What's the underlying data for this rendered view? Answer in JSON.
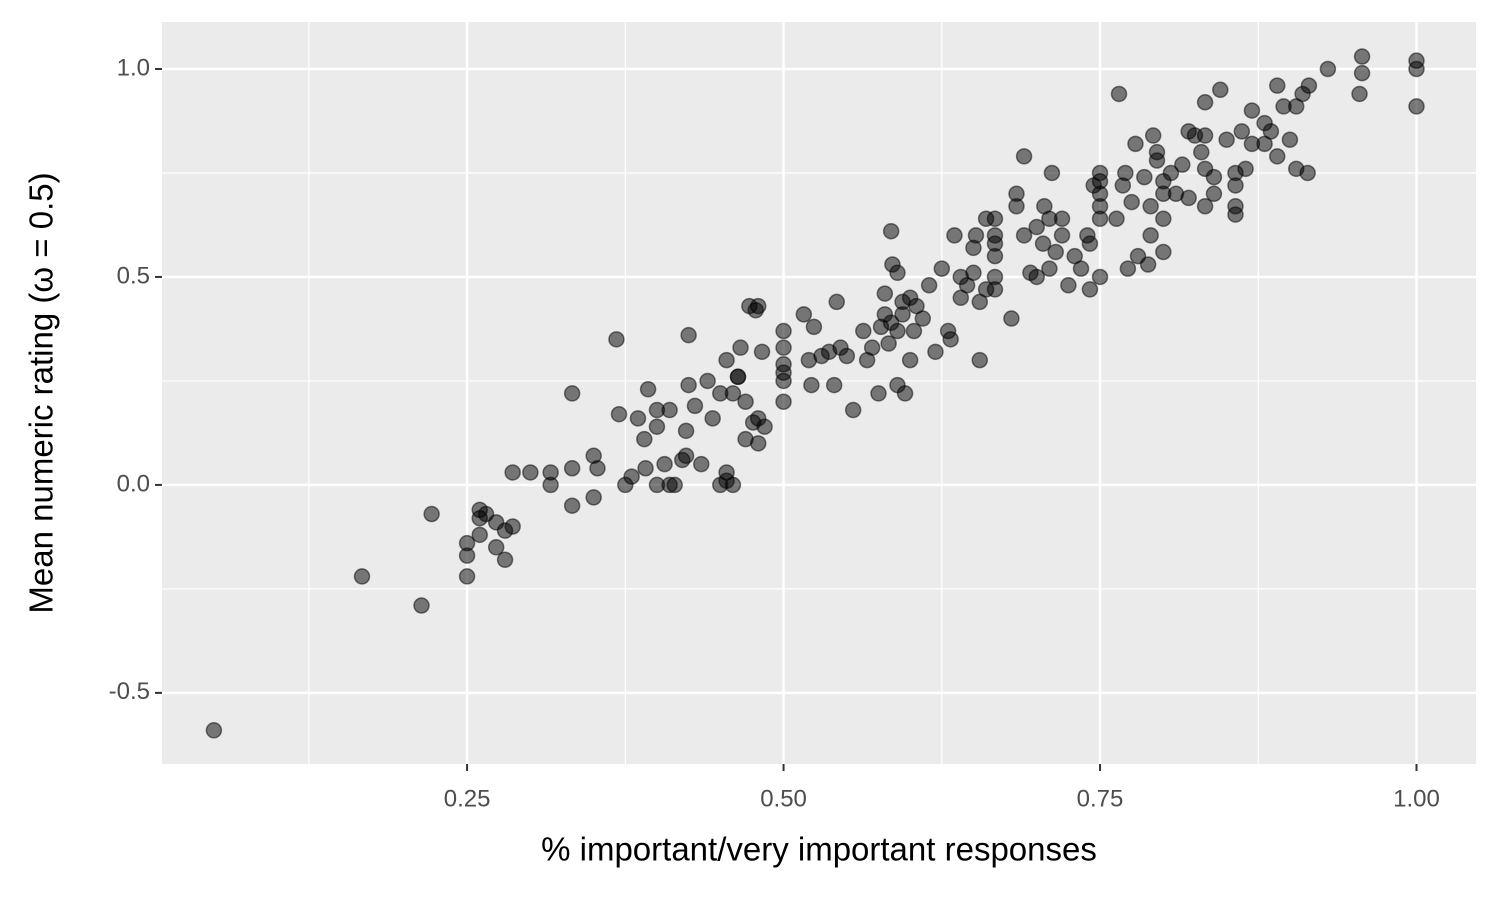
{
  "chart_data": {
    "type": "scatter",
    "x_label": "% important/very important responses",
    "y_label": "Mean numeric rating (ω = 0.5)",
    "color": "#000000",
    "opacity": 0.5,
    "grid": true,
    "xlim": [
      0.009,
      1.047
    ],
    "ylim": [
      -0.671,
      1.113
    ],
    "xticks": [
      0.25,
      {
        "value": 0.5,
        "label": "0.50"
      },
      0.75,
      {
        "value": 1,
        "label": "1.00"
      }
    ],
    "yticks": [
      {
        "value": -0.5,
        "label": "-0.5"
      },
      {
        "value": 0,
        "label": "0.0"
      },
      0.5,
      {
        "value": 1,
        "label": "1.0"
      }
    ],
    "x_minor_grid": [
      0.125,
      0.375,
      0.625,
      0.875
    ],
    "y_minor_grid": [
      -0.25,
      0.25,
      0.75
    ],
    "x": [
      0.05,
      0.167,
      0.214,
      0.222,
      0.25,
      0.25,
      0.25,
      0.26,
      0.26,
      0.26,
      0.265,
      0.273,
      0.273,
      0.28,
      0.28,
      0.286,
      0.286,
      0.3,
      0.316,
      0.316,
      0.333,
      0.333,
      0.333,
      0.35,
      0.35,
      0.353,
      0.368,
      0.37,
      0.375,
      0.38,
      0.385,
      0.39,
      0.391,
      0.393,
      0.4,
      0.4,
      0.4,
      0.406,
      0.41,
      0.41,
      0.414,
      0.42,
      0.423,
      0.423,
      0.425,
      0.425,
      0.43,
      0.435,
      0.44,
      0.444,
      0.45,
      0.45,
      0.455,
      0.455,
      0.455,
      0.46,
      0.46,
      0.464,
      0.464,
      0.466,
      0.47,
      0.47,
      0.473,
      0.476,
      0.478,
      0.48,
      0.48,
      0.48,
      0.483,
      0.485,
      0.5,
      0.5,
      0.5,
      0.5,
      0.5,
      0.5,
      0.516,
      0.52,
      0.522,
      0.524,
      0.53,
      0.536,
      0.54,
      0.542,
      0.545,
      0.55,
      0.555,
      0.563,
      0.566,
      0.57,
      0.575,
      0.577,
      0.58,
      0.58,
      0.583,
      0.585,
      0.585,
      0.586,
      0.59,
      0.59,
      0.59,
      0.594,
      0.594,
      0.596,
      0.6,
      0.6,
      0.603,
      0.605,
      0.61,
      0.615,
      0.62,
      0.625,
      0.63,
      0.632,
      0.635,
      0.64,
      0.64,
      0.645,
      0.65,
      0.65,
      0.652,
      0.655,
      0.655,
      0.66,
      0.66,
      0.667,
      0.667,
      0.667,
      0.667,
      0.667,
      0.667,
      0.68,
      0.684,
      0.684,
      0.69,
      0.69,
      0.695,
      0.7,
      0.7,
      0.705,
      0.706,
      0.71,
      0.71,
      0.712,
      0.715,
      0.72,
      0.72,
      0.725,
      0.73,
      0.735,
      0.74,
      0.742,
      0.742,
      0.745,
      0.75,
      0.75,
      0.75,
      0.75,
      0.75,
      0.75,
      0.763,
      0.765,
      0.768,
      0.77,
      0.772,
      0.775,
      0.778,
      0.78,
      0.785,
      0.788,
      0.79,
      0.79,
      0.792,
      0.795,
      0.795,
      0.8,
      0.8,
      0.8,
      0.8,
      0.806,
      0.81,
      0.815,
      0.82,
      0.82,
      0.825,
      0.83,
      0.833,
      0.833,
      0.833,
      0.833,
      0.84,
      0.84,
      0.845,
      0.85,
      0.857,
      0.857,
      0.857,
      0.857,
      0.862,
      0.865,
      0.87,
      0.87,
      0.88,
      0.88,
      0.885,
      0.89,
      0.89,
      0.895,
      0.9,
      0.905,
      0.905,
      0.91,
      0.914,
      0.915,
      0.93,
      0.955,
      0.957,
      0.957,
      1.0,
      1.0,
      1.0
    ],
    "values": [
      -0.59,
      -0.22,
      -0.29,
      -0.07,
      -0.14,
      -0.17,
      -0.22,
      -0.06,
      -0.08,
      -0.12,
      -0.07,
      -0.09,
      -0.15,
      -0.18,
      -0.11,
      -0.1,
      0.03,
      0.03,
      0.0,
      0.03,
      0.04,
      -0.05,
      0.22,
      0.07,
      -0.03,
      0.04,
      0.35,
      0.17,
      0.0,
      0.02,
      0.16,
      0.11,
      0.04,
      0.23,
      0.14,
      0.18,
      0.0,
      0.05,
      0.18,
      0.0,
      0.0,
      0.06,
      0.07,
      0.13,
      0.24,
      0.36,
      0.19,
      0.05,
      0.25,
      0.16,
      0.0,
      0.22,
      0.03,
      0.3,
      0.01,
      0.0,
      0.22,
      0.26,
      0.26,
      0.33,
      0.2,
      0.11,
      0.43,
      0.15,
      0.42,
      0.43,
      0.1,
      0.16,
      0.32,
      0.14,
      0.2,
      0.25,
      0.27,
      0.29,
      0.33,
      0.37,
      0.41,
      0.3,
      0.24,
      0.38,
      0.31,
      0.32,
      0.24,
      0.44,
      0.33,
      0.31,
      0.18,
      0.37,
      0.3,
      0.33,
      0.22,
      0.38,
      0.41,
      0.46,
      0.34,
      0.39,
      0.61,
      0.53,
      0.24,
      0.51,
      0.37,
      0.44,
      0.41,
      0.22,
      0.3,
      0.45,
      0.37,
      0.43,
      0.4,
      0.48,
      0.32,
      0.52,
      0.37,
      0.35,
      0.6,
      0.45,
      0.5,
      0.48,
      0.57,
      0.51,
      0.6,
      0.3,
      0.44,
      0.64,
      0.47,
      0.47,
      0.55,
      0.58,
      0.6,
      0.64,
      0.5,
      0.4,
      0.67,
      0.7,
      0.6,
      0.79,
      0.51,
      0.5,
      0.62,
      0.58,
      0.67,
      0.64,
      0.52,
      0.75,
      0.56,
      0.6,
      0.64,
      0.48,
      0.55,
      0.52,
      0.6,
      0.58,
      0.47,
      0.72,
      0.5,
      0.64,
      0.67,
      0.7,
      0.73,
      0.75,
      0.64,
      0.94,
      0.72,
      0.75,
      0.52,
      0.68,
      0.82,
      0.55,
      0.74,
      0.53,
      0.67,
      0.6,
      0.84,
      0.8,
      0.78,
      0.7,
      0.56,
      0.64,
      0.73,
      0.75,
      0.7,
      0.77,
      0.69,
      0.85,
      0.84,
      0.8,
      0.67,
      0.76,
      0.84,
      0.92,
      0.7,
      0.74,
      0.95,
      0.83,
      0.65,
      0.67,
      0.72,
      0.75,
      0.85,
      0.76,
      0.82,
      0.9,
      0.82,
      0.87,
      0.85,
      0.79,
      0.96,
      0.91,
      0.83,
      0.76,
      0.91,
      0.94,
      0.75,
      0.96,
      1.0,
      0.94,
      0.99,
      1.03,
      0.91,
      1.0,
      1.02
    ]
  }
}
